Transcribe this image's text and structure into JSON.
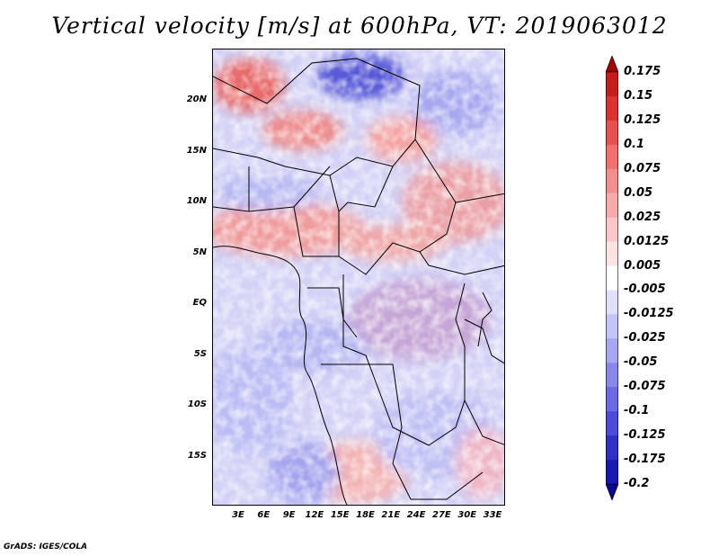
{
  "title": "Vertical velocity [m/s] at 600hPa, VT: 2019063012",
  "footer": "GrADS: IGES/COLA",
  "map": {
    "lat_labels": [
      "20N",
      "15N",
      "10N",
      "5N",
      "EQ",
      "5S",
      "10S",
      "15S"
    ],
    "lon_labels": [
      "3E",
      "6E",
      "9E",
      "12E",
      "15E",
      "18E",
      "21E",
      "24E",
      "27E",
      "30E",
      "33E"
    ],
    "field": "vertical velocity",
    "units": "m/s",
    "level": "600hPa",
    "valid_time": "2019063012"
  },
  "colorbar": {
    "labels": [
      "0.175",
      "0.15",
      "0.125",
      "0.1",
      "0.075",
      "0.05",
      "0.025",
      "0.0125",
      "0.005",
      "-0.005",
      "-0.0125",
      "-0.025",
      "-0.05",
      "-0.075",
      "-0.1",
      "-0.125",
      "-0.175",
      "-0.2"
    ],
    "colors": [
      "#a00000",
      "#c81c1c",
      "#dc3232",
      "#e65050",
      "#f07070",
      "#f48e8e",
      "#f8aaaa",
      "#fac8c8",
      "#fde4e4",
      "#ffffff",
      "#e0e0fb",
      "#c4c4f6",
      "#a6a6f1",
      "#8888ec",
      "#6a6ae4",
      "#4c4cd8",
      "#3030c4",
      "#1a1ab0",
      "#0a0a90"
    ]
  }
}
